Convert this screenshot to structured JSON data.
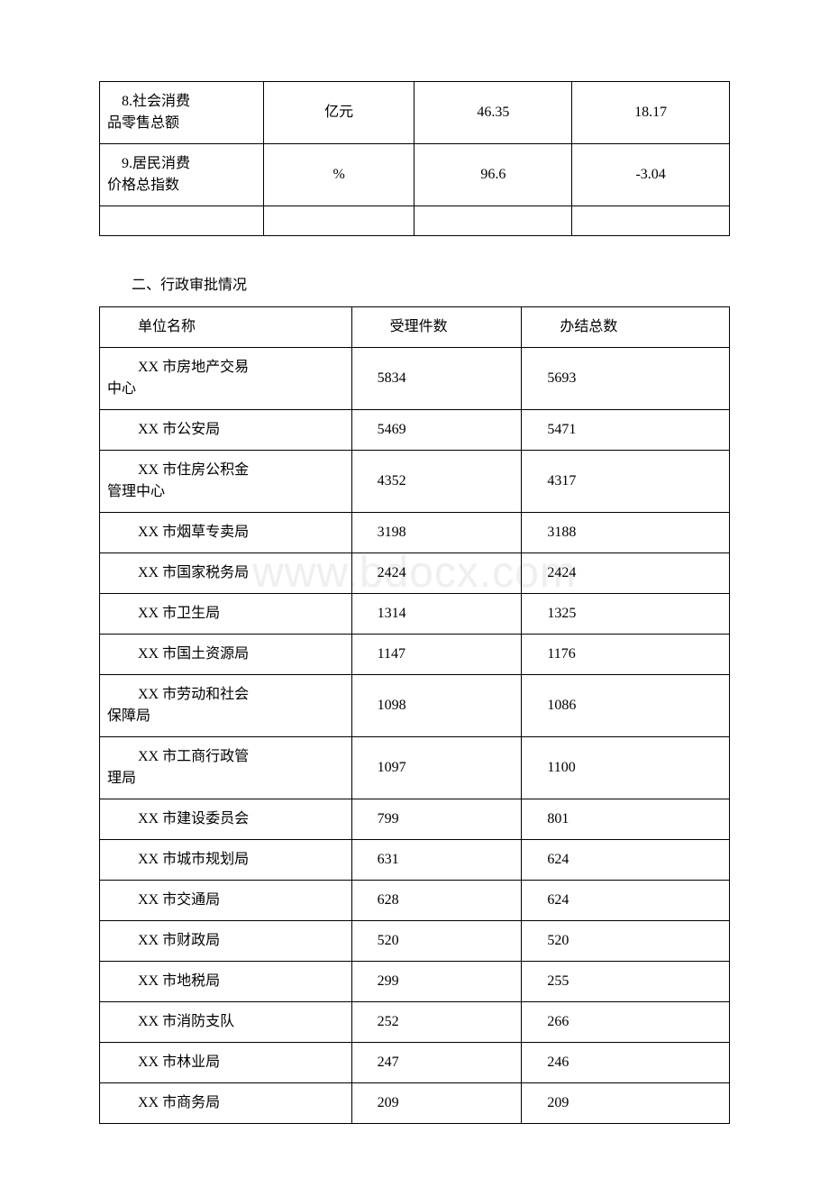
{
  "watermark": "www.bdocx.com",
  "table1": {
    "rows": [
      {
        "label_l1": "    8.社会消费",
        "label_l2": "品零售总额",
        "unit": "亿元",
        "val": "46.35",
        "pct": "18.17"
      },
      {
        "label_l1": "    9.居民消费",
        "label_l2": "价格总指数",
        "unit": "%",
        "val": "96.6",
        "pct": "-3.04"
      }
    ],
    "col_widths": [
      "26%",
      "24%",
      "25%",
      "25%"
    ]
  },
  "section2_title": "二、行政审批情况",
  "table2": {
    "headers": [
      "单位名称",
      "受理件数",
      "办结总数"
    ],
    "col_widths": [
      "40%",
      "27%",
      "33%"
    ],
    "rows": [
      {
        "name_l1": "XX 市房地产交易",
        "name_l2": "中心",
        "accepted": "5834",
        "completed": "5693"
      },
      {
        "name": "XX 市公安局",
        "accepted": "5469",
        "completed": "5471"
      },
      {
        "name_l1": "XX 市住房公积金",
        "name_l2": "管理中心",
        "accepted": "4352",
        "completed": "4317"
      },
      {
        "name": "XX 市烟草专卖局",
        "accepted": "3198",
        "completed": "3188"
      },
      {
        "name": "XX 市国家税务局",
        "accepted": "2424",
        "completed": "2424"
      },
      {
        "name": "XX 市卫生局",
        "accepted": "1314",
        "completed": "1325"
      },
      {
        "name": "XX 市国土资源局",
        "accepted": "1147",
        "completed": "1176"
      },
      {
        "name_l1": "XX 市劳动和社会",
        "name_l2": "保障局",
        "accepted": "1098",
        "completed": "1086"
      },
      {
        "name_l1": "XX 市工商行政管",
        "name_l2": "理局",
        "accepted": "1097",
        "completed": "1100"
      },
      {
        "name": "XX 市建设委员会",
        "accepted": "799",
        "completed": "801"
      },
      {
        "name": "XX 市城市规划局",
        "accepted": "631",
        "completed": "624"
      },
      {
        "name": "XX 市交通局",
        "accepted": "628",
        "completed": "624"
      },
      {
        "name": "XX 市财政局",
        "accepted": "520",
        "completed": "520"
      },
      {
        "name": "XX 市地税局",
        "accepted": "299",
        "completed": "255"
      },
      {
        "name": "XX 市消防支队",
        "accepted": "252",
        "completed": "266"
      },
      {
        "name": "XX 市林业局",
        "accepted": "247",
        "completed": "246"
      },
      {
        "name": "XX 市商务局",
        "accepted": "209",
        "completed": "209"
      }
    ]
  }
}
